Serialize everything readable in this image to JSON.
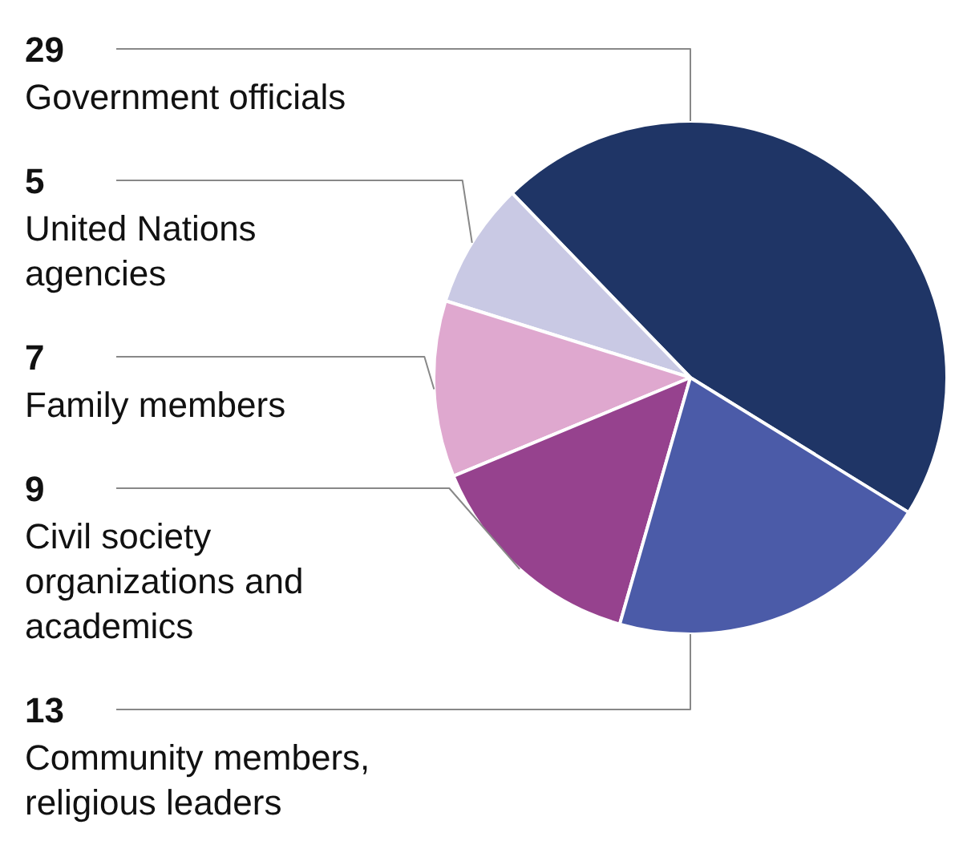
{
  "chart_data": {
    "type": "pie",
    "categories": [
      "Government officials",
      "United Nations agencies",
      "Family members",
      "Civil society organizations and academics",
      "Community members, religious leaders"
    ],
    "values": [
      29,
      5,
      7,
      9,
      13
    ],
    "colors": [
      "#1f3566",
      "#c9c9e4",
      "#dfa8cf",
      "#96428e",
      "#4b5ba8"
    ],
    "data_labels": true
  }
}
